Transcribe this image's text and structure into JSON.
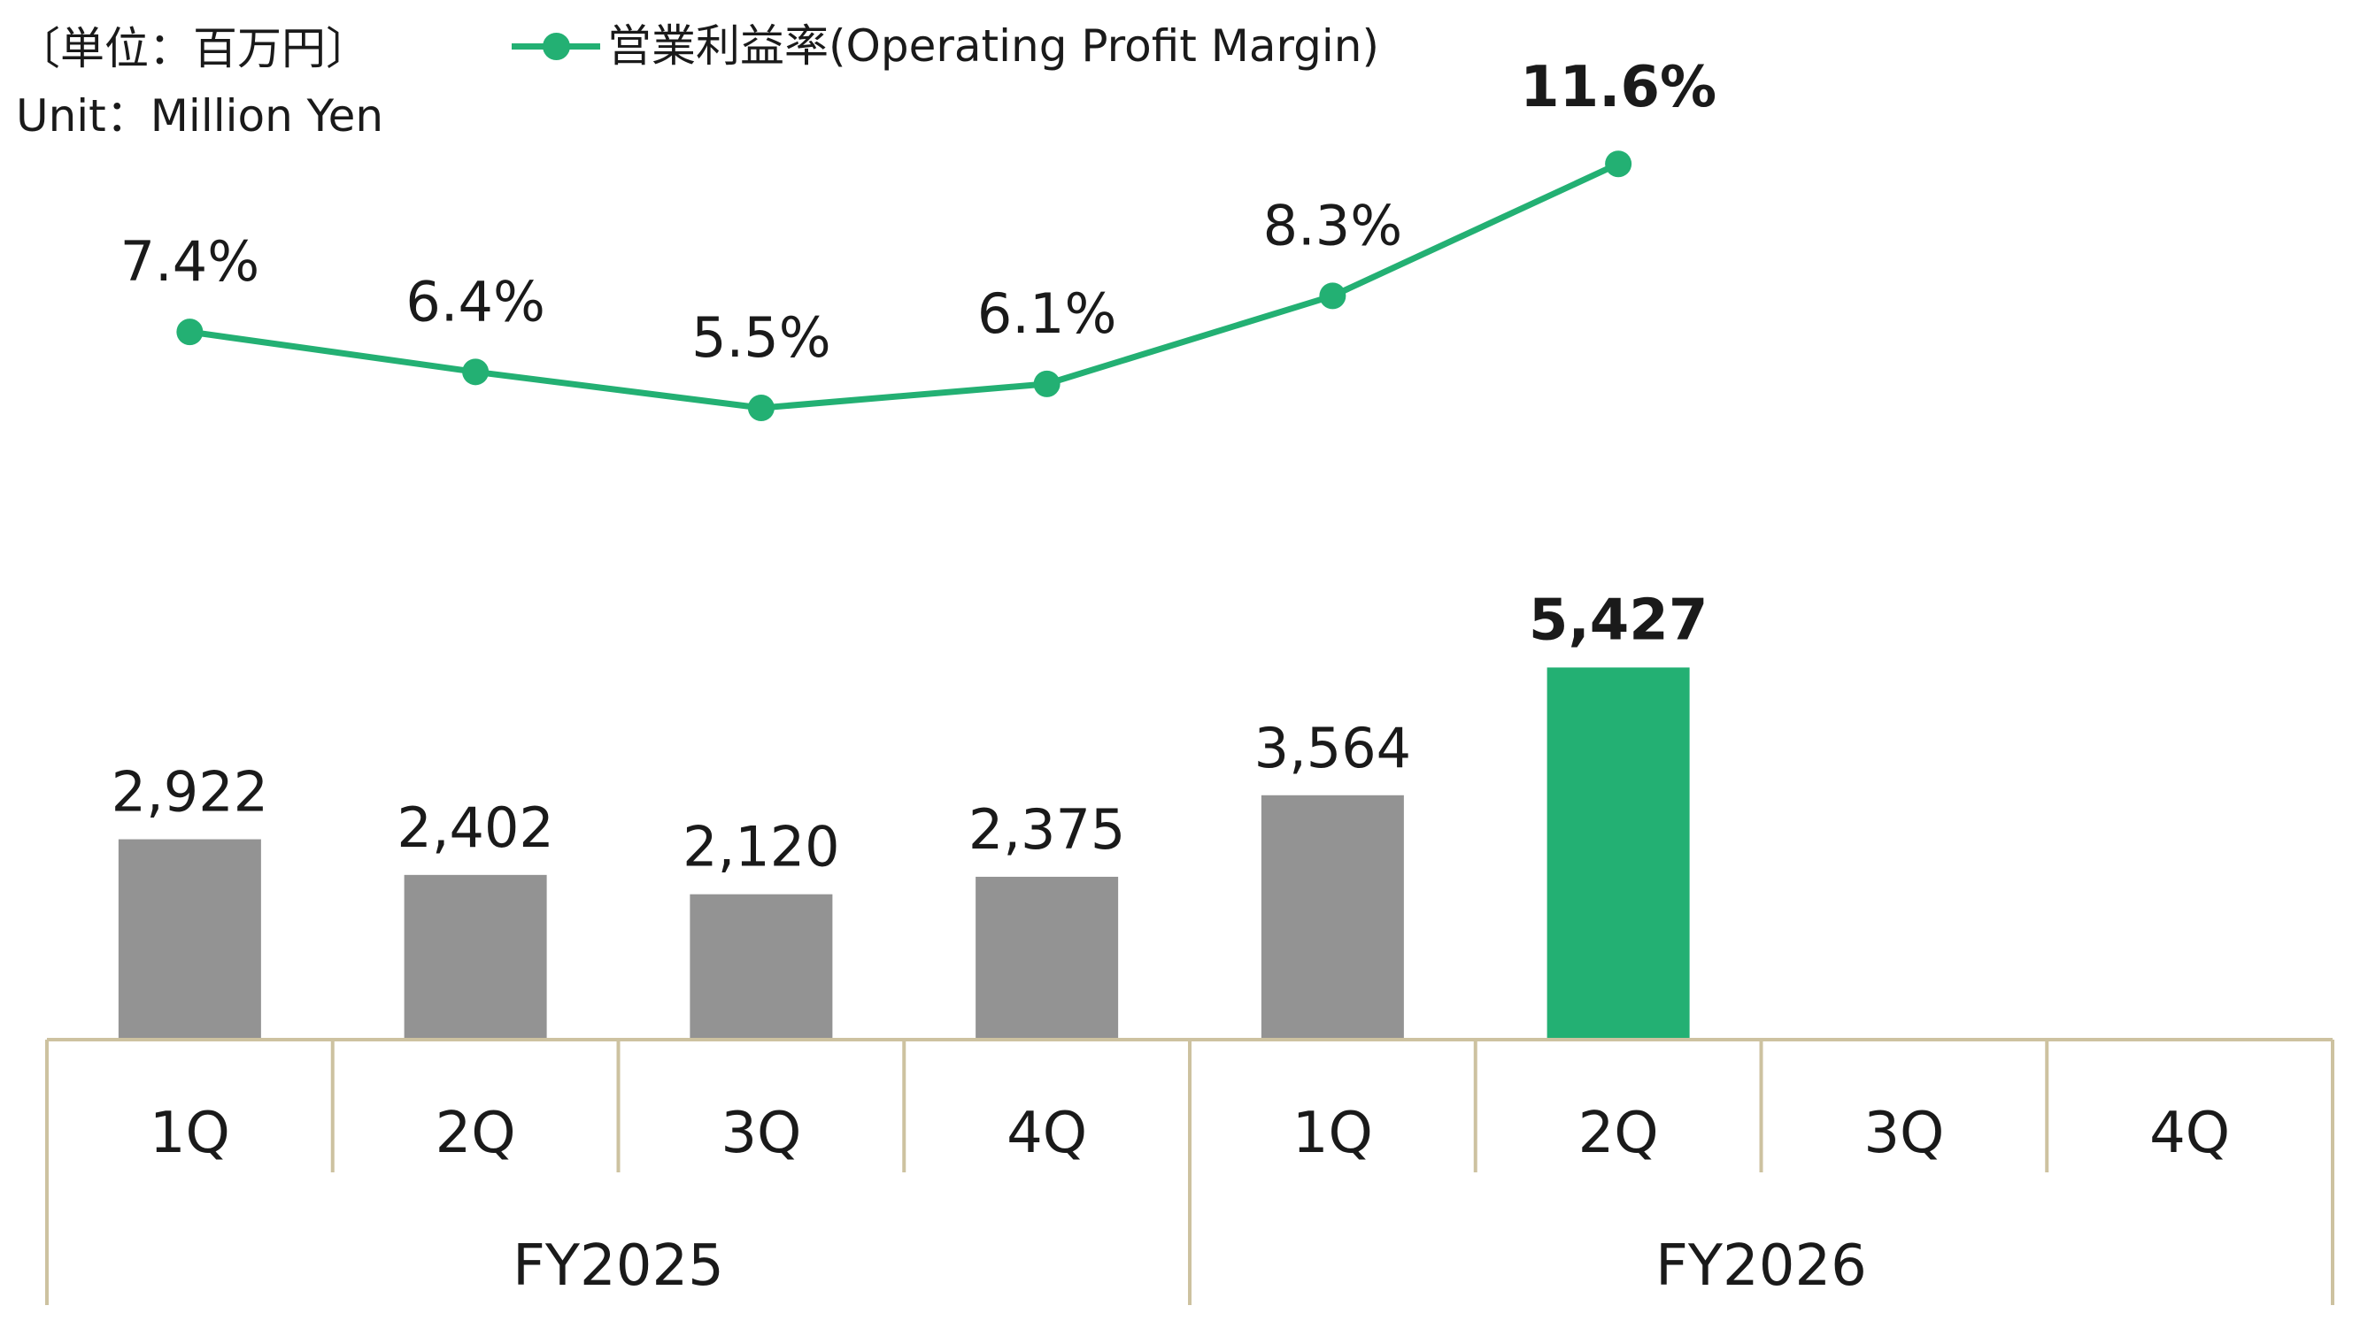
{
  "unit_label_ja": "〔単位：百万円〕",
  "unit_label_en": "Unit：Million Yen",
  "legend": {
    "line_label": "営業利益率(Operating Profit Margin)"
  },
  "colors": {
    "bar_default": "#939393",
    "bar_highlight": "#23b073",
    "line": "#23b073",
    "axis": "#cdc2a0",
    "text": "#1a1a1a"
  },
  "chart_data": {
    "type": "bar+line",
    "categories": [
      "1Q",
      "2Q",
      "3Q",
      "4Q",
      "1Q",
      "2Q",
      "3Q",
      "4Q"
    ],
    "groups": [
      {
        "label": "FY2025",
        "span": [
          0,
          3
        ]
      },
      {
        "label": "FY2026",
        "span": [
          4,
          7
        ]
      }
    ],
    "series": [
      {
        "type": "bar",
        "values": [
          2922,
          2402,
          2120,
          2375,
          3564,
          5427,
          null,
          null
        ],
        "labels": [
          "2,922",
          "2,402",
          "2,120",
          "2,375",
          "3,564",
          "5,427",
          "",
          ""
        ],
        "highlight_index": 5
      },
      {
        "name": "営業利益率(Operating Profit Margin)",
        "type": "line",
        "values": [
          7.4,
          6.4,
          5.5,
          6.1,
          8.3,
          11.6,
          null,
          null
        ],
        "labels": [
          "7.4%",
          "6.4%",
          "5.5%",
          "6.1%",
          "8.3%",
          "11.6%",
          "",
          ""
        ],
        "highlight_index": 5
      }
    ],
    "grid": false
  }
}
